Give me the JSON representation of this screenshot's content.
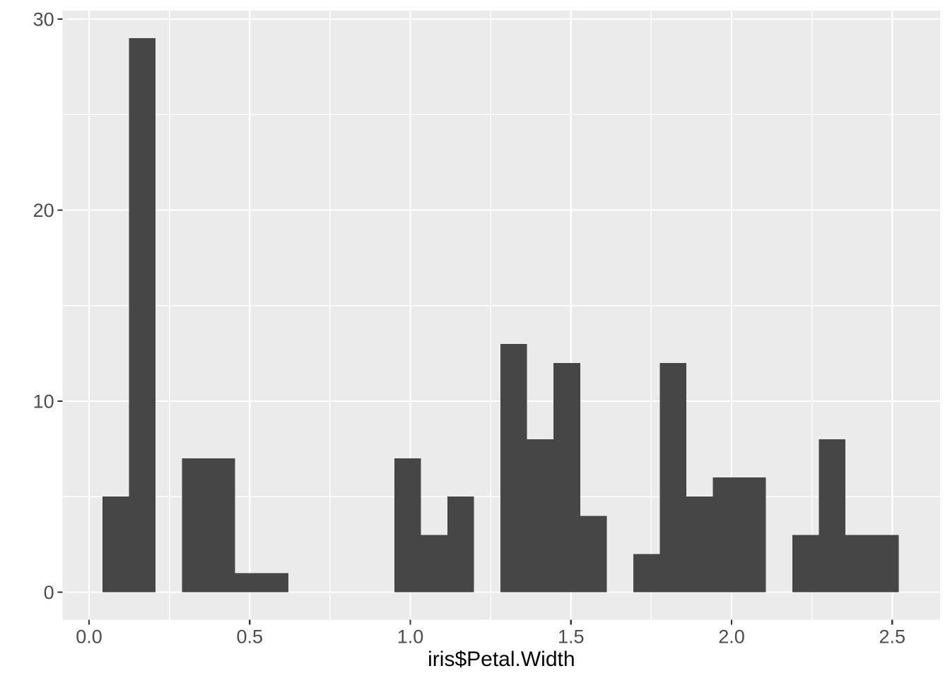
{
  "chart_data": {
    "type": "bar",
    "subtype": "histogram",
    "title": "",
    "xlabel": "iris$Petal.Width",
    "ylabel": "",
    "x_ticks": [
      0.0,
      0.5,
      1.0,
      1.5,
      2.0,
      2.5
    ],
    "x_tick_labels": [
      "0.0",
      "0.5",
      "1.0",
      "1.5",
      "2.0",
      "2.5"
    ],
    "y_ticks": [
      0,
      10,
      20,
      30
    ],
    "y_tick_labels": [
      "0",
      "10",
      "20",
      "30"
    ],
    "x_minor_gridlines": [
      0.25,
      0.75,
      1.25,
      1.75,
      2.25
    ],
    "y_minor_gridlines": [
      5,
      15,
      25
    ],
    "xlim": [
      -0.082,
      2.649
    ],
    "ylim": [
      -1.45,
      30.45
    ],
    "grid": "on",
    "legend": "none",
    "bin_start": 0.0418,
    "bin_width": 0.0826,
    "counts": [
      5,
      29,
      0,
      7,
      7,
      1,
      1,
      0,
      0,
      0,
      0,
      7,
      3,
      5,
      0,
      13,
      8,
      12,
      4,
      0,
      2,
      12,
      5,
      6,
      6,
      0,
      3,
      8,
      3,
      3
    ],
    "total_observations": 150,
    "colors": {
      "bar": "#464646",
      "panel_background": "#EBEBEB",
      "gridline": "#FFFFFF",
      "tick_mark": "#333333",
      "axis_text": "#4D4D4D",
      "axis_title": "#000000",
      "page_background": "#FFFFFF"
    }
  }
}
